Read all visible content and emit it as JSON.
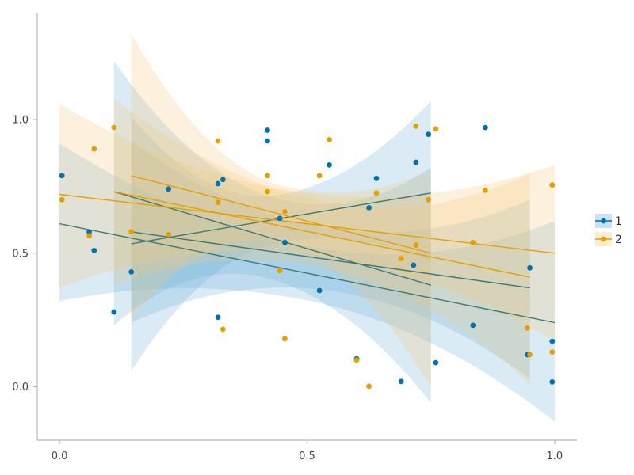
{
  "chart_data": {
    "type": "scatter",
    "xlim": [
      -0.045,
      1.045
    ],
    "ylim": [
      -0.2,
      1.4
    ],
    "x_ticks": [
      {
        "value": 0.0,
        "label": "0.0"
      },
      {
        "value": 0.5,
        "label": "0.5"
      },
      {
        "value": 1.0,
        "label": "1.0"
      }
    ],
    "y_ticks": [
      {
        "value": 0.0,
        "label": "0.0"
      },
      {
        "value": 0.5,
        "label": "0.5"
      },
      {
        "value": 1.0,
        "label": "1.0"
      }
    ],
    "grid": false,
    "legend": {
      "placement": "right"
    },
    "series": [
      {
        "name": "1",
        "color": "#0072b2",
        "band_color": "#6baed6",
        "points": [
          [
            0.005,
            0.79
          ],
          [
            0.06,
            0.58
          ],
          [
            0.07,
            0.51
          ],
          [
            0.11,
            0.28
          ],
          [
            0.145,
            0.43
          ],
          [
            0.22,
            0.74
          ],
          [
            0.32,
            0.26
          ],
          [
            0.32,
            0.76
          ],
          [
            0.33,
            0.775
          ],
          [
            0.42,
            0.92
          ],
          [
            0.42,
            0.96
          ],
          [
            0.445,
            0.63
          ],
          [
            0.455,
            0.54
          ],
          [
            0.525,
            0.36
          ],
          [
            0.545,
            0.83
          ],
          [
            0.6,
            0.105
          ],
          [
            0.625,
            0.67
          ],
          [
            0.64,
            0.78
          ],
          [
            0.69,
            0.02
          ],
          [
            0.715,
            0.455
          ],
          [
            0.72,
            0.84
          ],
          [
            0.745,
            0.945
          ],
          [
            0.76,
            0.09
          ],
          [
            0.835,
            0.23
          ],
          [
            0.86,
            0.97
          ],
          [
            0.945,
            0.12
          ],
          [
            0.95,
            0.445
          ],
          [
            0.995,
            0.17
          ],
          [
            0.995,
            0.018
          ]
        ],
        "fits": [
          {
            "x": [
              0.0,
              1.0
            ],
            "y": [
              0.61,
              0.24
            ],
            "band_lower": [
              0.32,
              -0.13
            ],
            "band_mid_lower": [
              0.37,
              0.04
            ],
            "band_upper": [
              0.91,
              0.62
            ]
          },
          {
            "x": [
              0.11,
              0.75
            ],
            "y": [
              0.73,
              0.38
            ],
            "band_lower": [
              0.23,
              -0.06
            ],
            "band_upper": [
              1.22,
              0.82
            ]
          },
          {
            "x": [
              0.145,
              0.75
            ],
            "y": [
              0.535,
              0.725
            ],
            "band_lower": [
              0.06,
              0.47
            ],
            "band_upper": [
              1.01,
              1.07
            ]
          },
          {
            "x": [
              0.145,
              0.95
            ],
            "y": [
              0.58,
              0.37
            ],
            "band_lower": [
              0.24,
              0.03
            ],
            "band_upper": [
              0.92,
              0.7
            ]
          }
        ]
      },
      {
        "name": "2",
        "color": "#e69f00",
        "band_color": "#f7c979",
        "points": [
          [
            0.005,
            0.7
          ],
          [
            0.06,
            0.565
          ],
          [
            0.07,
            0.89
          ],
          [
            0.11,
            0.97
          ],
          [
            0.145,
            0.58
          ],
          [
            0.22,
            0.57
          ],
          [
            0.32,
            0.92
          ],
          [
            0.32,
            0.69
          ],
          [
            0.33,
            0.215
          ],
          [
            0.42,
            0.73
          ],
          [
            0.42,
            0.79
          ],
          [
            0.445,
            0.435
          ],
          [
            0.455,
            0.655
          ],
          [
            0.455,
            0.18
          ],
          [
            0.525,
            0.79
          ],
          [
            0.545,
            0.925
          ],
          [
            0.6,
            0.1
          ],
          [
            0.625,
            0.002
          ],
          [
            0.64,
            0.725
          ],
          [
            0.69,
            0.48
          ],
          [
            0.72,
            0.975
          ],
          [
            0.72,
            0.53
          ],
          [
            0.745,
            0.7
          ],
          [
            0.76,
            0.965
          ],
          [
            0.835,
            0.54
          ],
          [
            0.86,
            0.735
          ],
          [
            0.945,
            0.22
          ],
          [
            0.95,
            0.12
          ],
          [
            0.995,
            0.755
          ],
          [
            0.995,
            0.13
          ]
        ],
        "fits": [
          {
            "x": [
              0.0,
              1.0
            ],
            "y": [
              0.72,
              0.5
            ],
            "band_lower": [
              0.37,
              0.17
            ],
            "band_upper": [
              1.06,
              0.83
            ]
          },
          {
            "x": [
              0.145,
              0.75
            ],
            "y": [
              0.79,
              0.5
            ],
            "band_lower": [
              0.25,
              0.0
            ],
            "band_upper": [
              1.32,
              0.81
            ]
          },
          {
            "x": [
              0.11,
              0.95
            ],
            "y": [
              0.73,
              0.41
            ],
            "band_lower": [
              0.38,
              0.01
            ],
            "band_upper": [
              1.08,
              0.8
            ]
          }
        ]
      }
    ]
  }
}
